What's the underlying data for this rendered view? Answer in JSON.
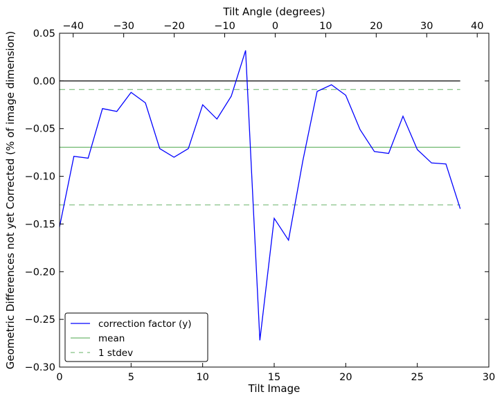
{
  "chart_data": {
    "type": "line",
    "xlabel": "Tilt Image",
    "ylabel": "Geometric Differences not yet Corrected (% of image dimension)",
    "x2label": "Tilt Angle (degrees)",
    "xlim": [
      0,
      30
    ],
    "ylim": [
      -0.3,
      0.05
    ],
    "x2lim": [
      -42.7,
      42.3
    ],
    "x_ticks": [
      0,
      5,
      10,
      15,
      20,
      25,
      30
    ],
    "x_tick_labels": [
      "0",
      "5",
      "10",
      "15",
      "20",
      "25",
      "30"
    ],
    "y_ticks": [
      0.05,
      0.0,
      -0.05,
      -0.1,
      -0.15,
      -0.2,
      -0.25,
      -0.3
    ],
    "y_tick_labels": [
      "0.05",
      "0.00",
      "−0.05",
      "−0.10",
      "−0.15",
      "−0.20",
      "−0.25",
      "−0.30"
    ],
    "x2_ticks": [
      -40,
      -30,
      -20,
      -10,
      0,
      10,
      20,
      30,
      40
    ],
    "x2_tick_labels": [
      "−40",
      "−30",
      "−20",
      "−10",
      "0",
      "10",
      "20",
      "30",
      "40"
    ],
    "grid": false,
    "legend_position": "lower-left",
    "series": [
      {
        "name": "correction factor (y)",
        "color": "#0000ff",
        "style": "solid",
        "x": [
          0,
          1,
          2,
          3,
          4,
          5,
          6,
          7,
          8,
          9,
          10,
          11,
          12,
          13,
          14,
          15,
          16,
          17,
          18,
          19,
          20,
          21,
          22,
          23,
          24,
          25,
          26,
          27,
          28
        ],
        "y": [
          -0.153,
          -0.079,
          -0.081,
          -0.029,
          -0.032,
          -0.012,
          -0.023,
          -0.071,
          -0.08,
          -0.071,
          -0.025,
          -0.04,
          -0.016,
          0.032,
          -0.272,
          -0.144,
          -0.167,
          -0.084,
          -0.011,
          -0.004,
          -0.015,
          -0.051,
          -0.074,
          -0.076,
          -0.037,
          -0.072,
          -0.086,
          -0.087,
          -0.134
        ]
      },
      {
        "name": "mean",
        "color": "#008000",
        "style": "solid",
        "x": [
          0,
          28
        ],
        "y": [
          -0.0695,
          -0.0695
        ]
      },
      {
        "name": "1 stdev",
        "color": "#008000",
        "style": "dashed",
        "x": [
          0,
          28
        ],
        "y": [
          -0.009,
          -0.009
        ],
        "y_lower": [
          -0.13,
          -0.13
        ]
      },
      {
        "name": "",
        "color": "#000000",
        "style": "solid",
        "x": [
          0,
          28
        ],
        "y": [
          0.0,
          0.0
        ]
      }
    ]
  }
}
